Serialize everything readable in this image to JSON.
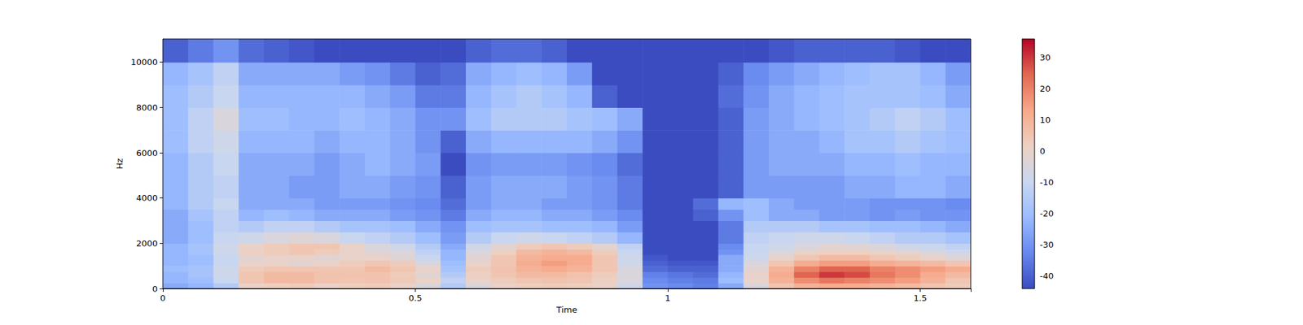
{
  "chart_data": {
    "type": "heatmap",
    "x_label": "Time",
    "y_label": "Hz",
    "xlim": [
      0,
      1.6
    ],
    "ylim": [
      0,
      11025
    ],
    "xticks": [
      0,
      0.5,
      1,
      1.5
    ],
    "yticks": [
      0,
      2000,
      4000,
      6000,
      8000,
      10000
    ],
    "x_edges": [
      0,
      0.05,
      0.1,
      0.15,
      0.2,
      0.25,
      0.3,
      0.35,
      0.4,
      0.45,
      0.5,
      0.55,
      0.6,
      0.65,
      0.7,
      0.75,
      0.8,
      0.85,
      0.9,
      0.95,
      1,
      1.05,
      1.1,
      1.15,
      1.2,
      1.25,
      1.3,
      1.35,
      1.4,
      1.45,
      1.5,
      1.55,
      1.6
    ],
    "y_edges": [
      0,
      250,
      500,
      750,
      1000,
      1250,
      1500,
      1750,
      2000,
      2500,
      3000,
      3500,
      4000,
      5000,
      6000,
      7000,
      8000,
      9000,
      10000,
      11025
    ],
    "cells": [
      [
        -25,
        -22,
        -15,
        0,
        2,
        3,
        0,
        2,
        3,
        0,
        -5,
        -15,
        -5,
        0,
        2,
        3,
        2,
        0,
        -8,
        -30,
        -32,
        -34,
        -25,
        -5,
        5,
        10,
        12,
        12,
        10,
        8,
        5,
        3
      ],
      [
        -22,
        -20,
        -10,
        5,
        8,
        8,
        6,
        5,
        6,
        4,
        0,
        -12,
        0,
        3,
        5,
        6,
        5,
        2,
        -5,
        -32,
        -34,
        -35,
        -20,
        0,
        10,
        18,
        22,
        20,
        18,
        15,
        10,
        5
      ],
      [
        -22,
        -18,
        -8,
        5,
        8,
        8,
        6,
        6,
        6,
        3,
        -2,
        -15,
        2,
        5,
        8,
        8,
        6,
        3,
        -5,
        -34,
        -36,
        -38,
        -22,
        0,
        12,
        25,
        30,
        28,
        22,
        18,
        12,
        8
      ],
      [
        -20,
        -18,
        -8,
        3,
        5,
        5,
        5,
        5,
        8,
        5,
        0,
        -18,
        3,
        6,
        10,
        12,
        10,
        5,
        -5,
        -38,
        -40,
        -40,
        -25,
        -2,
        10,
        20,
        25,
        25,
        20,
        18,
        15,
        12
      ],
      [
        -22,
        -20,
        -10,
        0,
        0,
        -2,
        0,
        3,
        5,
        3,
        -5,
        -20,
        0,
        5,
        12,
        15,
        12,
        5,
        -8,
        -40,
        -42,
        -42,
        -25,
        -5,
        5,
        12,
        15,
        15,
        12,
        10,
        8,
        5
      ],
      [
        -22,
        -20,
        -10,
        -2,
        0,
        0,
        -2,
        0,
        0,
        -3,
        -10,
        -22,
        -2,
        5,
        10,
        12,
        12,
        5,
        -8,
        -42,
        -44,
        -44,
        -25,
        -8,
        0,
        5,
        8,
        8,
        5,
        3,
        0,
        -3
      ],
      [
        -22,
        -18,
        -8,
        2,
        3,
        5,
        3,
        0,
        -3,
        -5,
        -12,
        -22,
        -5,
        2,
        8,
        10,
        8,
        3,
        -10,
        -44,
        -44,
        -44,
        -30,
        -10,
        -5,
        0,
        2,
        2,
        0,
        -2,
        -5,
        -8
      ],
      [
        -22,
        -18,
        -8,
        0,
        3,
        5,
        5,
        0,
        -5,
        -8,
        -15,
        -25,
        -8,
        -2,
        3,
        5,
        3,
        -2,
        -12,
        -44,
        -44,
        -44,
        -32,
        -10,
        -8,
        -5,
        -2,
        -3,
        -5,
        -8,
        -10,
        -12
      ],
      [
        -25,
        -20,
        -10,
        -8,
        -5,
        -3,
        -5,
        -10,
        -12,
        -15,
        -20,
        -28,
        -15,
        -10,
        -8,
        -10,
        -12,
        -15,
        -22,
        -44,
        -44,
        -44,
        -35,
        -12,
        -10,
        -8,
        -8,
        -10,
        -12,
        -15,
        -15,
        -18
      ],
      [
        -25,
        -20,
        -12,
        -15,
        -12,
        -12,
        -15,
        -18,
        -18,
        -20,
        -25,
        -30,
        -20,
        -18,
        -18,
        -20,
        -20,
        -22,
        -28,
        -44,
        -44,
        -44,
        -35,
        -15,
        -15,
        -15,
        -18,
        -18,
        -20,
        -20,
        -22,
        -25
      ],
      [
        -25,
        -18,
        -12,
        -22,
        -20,
        -22,
        -25,
        -25,
        -25,
        -28,
        -30,
        -35,
        -25,
        -22,
        -22,
        -25,
        -25,
        -28,
        -32,
        -44,
        -44,
        -40,
        -30,
        -20,
        -25,
        -25,
        -28,
        -28,
        -30,
        -28,
        -30,
        -30
      ],
      [
        -22,
        -15,
        -10,
        -25,
        -25,
        -25,
        -28,
        -28,
        -28,
        -30,
        -32,
        -38,
        -28,
        -25,
        -25,
        -28,
        -28,
        -30,
        -35,
        -44,
        -44,
        -38,
        -22,
        -20,
        -25,
        -28,
        -28,
        -28,
        -30,
        -30,
        -30,
        -32
      ],
      [
        -22,
        -15,
        -12,
        -25,
        -25,
        -28,
        -28,
        -25,
        -25,
        -28,
        -30,
        -40,
        -28,
        -25,
        -25,
        -25,
        -28,
        -30,
        -35,
        -44,
        -44,
        -44,
        -40,
        -28,
        -28,
        -28,
        -28,
        -25,
        -25,
        -22,
        -22,
        -25
      ],
      [
        -22,
        -15,
        -10,
        -25,
        -25,
        -25,
        -28,
        -25,
        -22,
        -25,
        -28,
        -44,
        -30,
        -28,
        -28,
        -28,
        -30,
        -32,
        -38,
        -44,
        -44,
        -44,
        -40,
        -28,
        -25,
        -25,
        -25,
        -22,
        -22,
        -20,
        -22,
        -22
      ],
      [
        -20,
        -12,
        -8,
        -22,
        -22,
        -22,
        -25,
        -22,
        -22,
        -25,
        -30,
        -40,
        -25,
        -22,
        -22,
        -22,
        -22,
        -25,
        -30,
        -44,
        -44,
        -44,
        -40,
        -28,
        -25,
        -25,
        -22,
        -18,
        -18,
        -15,
        -18,
        -20
      ],
      [
        -20,
        -12,
        -5,
        -20,
        -20,
        -22,
        -22,
        -20,
        -22,
        -25,
        -30,
        -30,
        -20,
        -15,
        -15,
        -15,
        -18,
        -20,
        -25,
        -44,
        -44,
        -44,
        -40,
        -28,
        -25,
        -22,
        -20,
        -18,
        -15,
        -12,
        -15,
        -20
      ],
      [
        -20,
        -15,
        -10,
        -22,
        -22,
        -22,
        -22,
        -22,
        -25,
        -28,
        -35,
        -35,
        -22,
        -18,
        -15,
        -18,
        -22,
        -40,
        -44,
        -44,
        -44,
        -44,
        -38,
        -30,
        -25,
        -22,
        -20,
        -18,
        -18,
        -18,
        -20,
        -25
      ],
      [
        -22,
        -18,
        -12,
        -25,
        -25,
        -25,
        -25,
        -28,
        -30,
        -35,
        -40,
        -38,
        -25,
        -22,
        -20,
        -22,
        -28,
        -44,
        -44,
        -44,
        -44,
        -44,
        -40,
        -32,
        -28,
        -25,
        -22,
        -20,
        -18,
        -18,
        -22,
        -28
      ],
      [
        -40,
        -35,
        -30,
        -38,
        -40,
        -42,
        -44,
        -44,
        -44,
        -44,
        -44,
        -44,
        -40,
        -38,
        -38,
        -40,
        -44,
        -44,
        -44,
        -44,
        -44,
        -44,
        -44,
        -44,
        -42,
        -40,
        -40,
        -40,
        -40,
        -42,
        -44,
        -44
      ]
    ],
    "colorbar": {
      "range": [
        -44,
        36
      ],
      "ticks": [
        -40,
        -30,
        -20,
        -10,
        0,
        10,
        20,
        30
      ]
    }
  }
}
